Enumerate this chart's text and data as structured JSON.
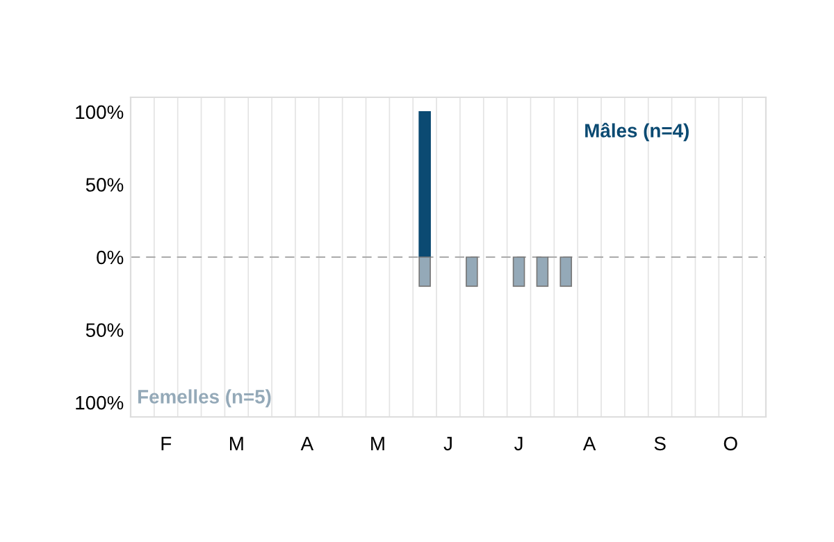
{
  "chart_data": {
    "type": "bar",
    "categories": [
      null,
      "F",
      null,
      null,
      "M",
      null,
      null,
      "A",
      null,
      null,
      "M",
      null,
      null,
      "J",
      null,
      null,
      "J",
      null,
      null,
      "A",
      null,
      null,
      "S",
      null,
      null,
      "O",
      null
    ],
    "series": [
      {
        "name": "Mâles (n=4)",
        "color": "#0b4a72",
        "values": [
          null,
          null,
          null,
          null,
          null,
          null,
          null,
          null,
          null,
          null,
          null,
          null,
          100,
          null,
          null,
          null,
          null,
          null,
          null,
          null,
          null,
          null,
          null,
          null,
          null,
          null,
          null
        ]
      },
      {
        "name": "Femelles (n=5)",
        "color": "#94a9b8",
        "values": [
          null,
          null,
          null,
          null,
          null,
          null,
          null,
          null,
          null,
          null,
          null,
          null,
          -20,
          null,
          -20,
          null,
          -20,
          -20,
          -20,
          null,
          null,
          null,
          null,
          null,
          null,
          null,
          null
        ]
      }
    ],
    "ylim": [
      -110,
      110
    ],
    "yticks": [
      {
        "value": 100,
        "label": "100%"
      },
      {
        "value": 50,
        "label": "50%"
      },
      {
        "value": 0,
        "label": "0%"
      },
      {
        "value": -50,
        "label": "50%"
      },
      {
        "value": -100,
        "label": "100%"
      }
    ],
    "grid": "x",
    "ref_lines": [
      {
        "axis": "y",
        "value": 0,
        "label": null,
        "color": "#aaaaaa",
        "line_style": "dashed"
      }
    ]
  }
}
